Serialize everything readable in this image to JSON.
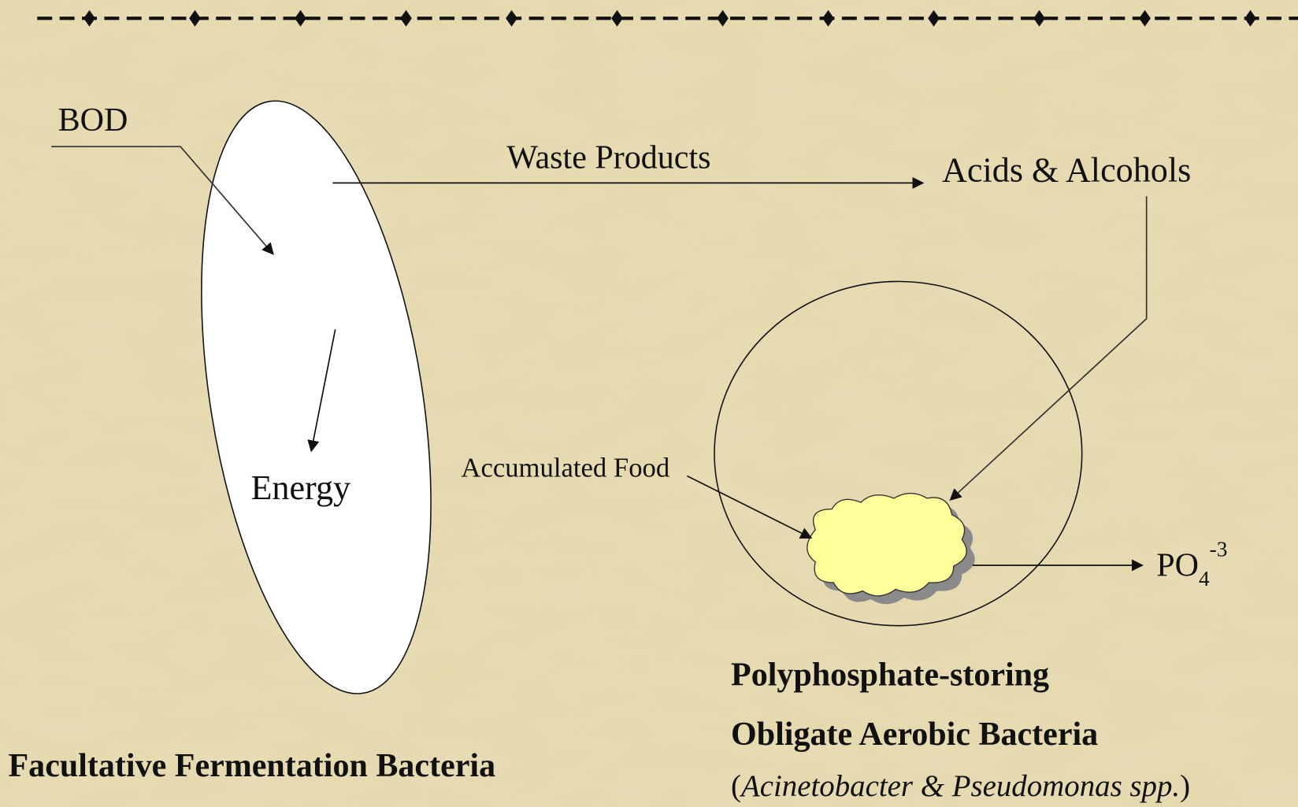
{
  "labels": {
    "bod": "BOD",
    "energy": "Energy",
    "waste_products": "Waste Products",
    "acids_alcohols": "Acids & Alcohols",
    "accumulated_food": "Accumulated Food",
    "phosphate": {
      "base": "PO",
      "subscript": "4",
      "superscript": "-3"
    }
  },
  "captions": {
    "left": "Facultative Fermentation Bacteria",
    "right_line1": "Polyphosphate-storing",
    "right_line2": "Obligate Aerobic Bacteria",
    "right_line3": [
      "(",
      "Acinetobacter",
      " & ",
      "Pseudomonas spp.",
      ")"
    ]
  }
}
